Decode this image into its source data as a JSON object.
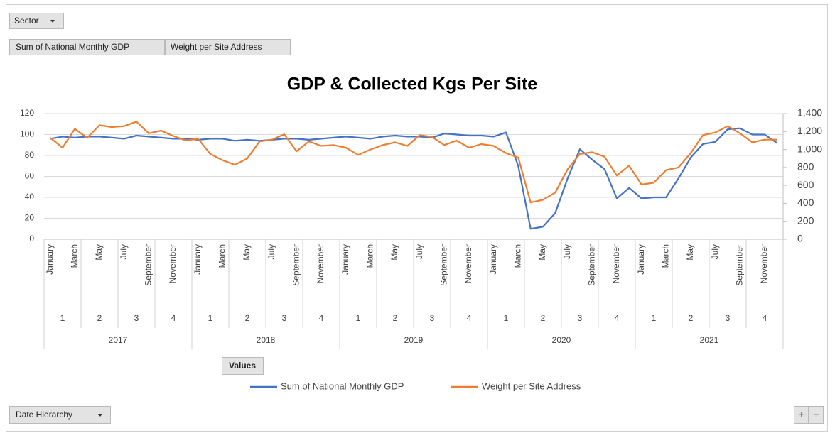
{
  "chart_data": {
    "type": "line",
    "title": "GDP & Collected Kgs Per Site",
    "categories": [
      "January",
      null,
      "March",
      null,
      "May",
      null,
      "July",
      null,
      "September",
      null,
      "November",
      null,
      "January",
      null,
      "March",
      null,
      "May",
      null,
      "July",
      null,
      "September",
      null,
      "November",
      null,
      "January",
      null,
      "March",
      null,
      "May",
      null,
      "July",
      null,
      "September",
      null,
      "November",
      null,
      "January",
      null,
      "March",
      null,
      "May",
      null,
      "July",
      null,
      "September",
      null,
      "November",
      null,
      "January",
      null,
      "March",
      null,
      "May",
      null,
      "July",
      null,
      "September",
      null,
      "November",
      null
    ],
    "quarters": [
      "1",
      "2",
      "3",
      "4",
      "1",
      "2",
      "3",
      "4",
      "1",
      "2",
      "3",
      "4",
      "1",
      "2",
      "3",
      "4",
      "1",
      "2",
      "3",
      "4"
    ],
    "years": [
      "2017",
      "2018",
      "2019",
      "2020",
      "2021"
    ],
    "series": [
      {
        "name": "Sum of National Monthly GDP",
        "color": "#4472c4",
        "values": [
          96,
          98,
          97,
          98,
          98,
          97,
          96,
          99,
          98,
          97,
          96,
          96,
          95,
          96,
          96,
          94,
          95,
          94,
          95,
          96,
          96,
          95,
          96,
          97,
          98,
          97,
          96,
          98,
          99,
          98,
          98,
          97,
          101,
          100,
          99,
          99,
          98,
          102,
          70,
          10,
          12,
          25,
          58,
          86,
          76,
          67,
          39,
          49,
          39,
          40,
          40,
          58,
          78,
          91,
          93,
          105,
          106,
          100,
          100,
          92
        ]
      },
      {
        "name": "Weight per Site Address",
        "color": "#ed7d31",
        "axis": "y2",
        "values": [
          1130,
          1020,
          1230,
          1130,
          1270,
          1250,
          1260,
          1310,
          1180,
          1210,
          1150,
          1100,
          1120,
          950,
          880,
          830,
          900,
          1090,
          1110,
          1170,
          980,
          1090,
          1040,
          1050,
          1020,
          940,
          1000,
          1050,
          1080,
          1040,
          1160,
          1140,
          1050,
          1100,
          1020,
          1060,
          1040,
          960,
          910,
          410,
          440,
          520,
          780,
          950,
          970,
          920,
          710,
          820,
          610,
          630,
          770,
          800,
          960,
          1160,
          1190,
          1260,
          1180,
          1080,
          1110,
          1110
        ]
      }
    ],
    "ylim": [
      0,
      120
    ],
    "yticks": [
      0,
      20,
      40,
      60,
      80,
      100,
      120
    ],
    "y2lim": [
      0,
      1400
    ],
    "y2ticks": [
      0,
      200,
      400,
      600,
      800,
      {
        "value": 1000,
        "label": "1,000"
      },
      {
        "value": 1200,
        "label": "1,200"
      },
      {
        "value": 1400,
        "label": "1,400"
      }
    ],
    "grid": true,
    "legend": "bottom"
  },
  "ui": {
    "filter_button": "Sector",
    "value_buttons": [
      "Sum of National Monthly GDP",
      "Weight per Site Address"
    ],
    "values_button": "Values",
    "axis_button": "Date Hierarchy",
    "zoom_buttons": [
      "+",
      "−"
    ]
  }
}
